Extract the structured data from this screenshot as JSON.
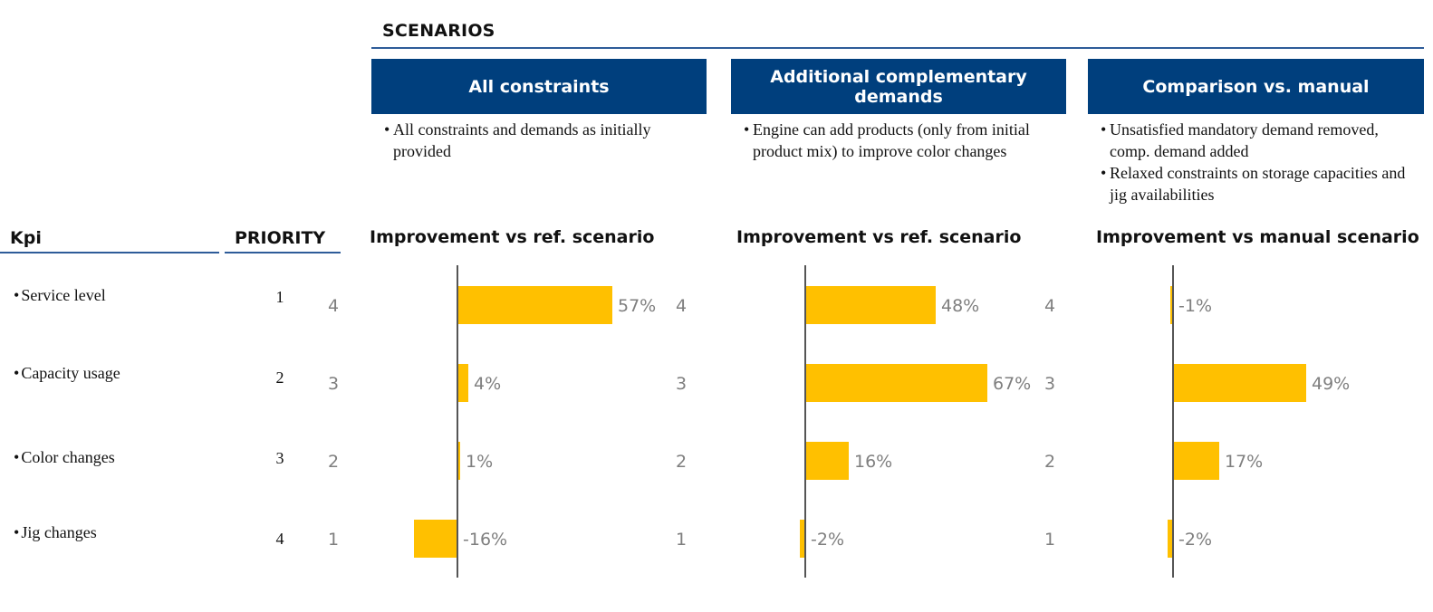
{
  "header": {
    "title": "SCENARIOS"
  },
  "scenarios": [
    {
      "title": "All constraints",
      "bullets": [
        "All constraints and demands as initially provided"
      ]
    },
    {
      "title": "Additional complementary demands",
      "bullets": [
        "Engine can add products (only from initial product mix) to improve color changes"
      ]
    },
    {
      "title": "Comparison vs. manual",
      "bullets": [
        "Unsatisfied mandatory demand removed, comp. demand added",
        "Relaxed constraints on storage capacities and jig availabilities"
      ]
    }
  ],
  "table": {
    "kpi_header": "Kpi",
    "priority_header": "PRIORITY",
    "rows": [
      {
        "kpi": "Service level",
        "priority": "1"
      },
      {
        "kpi": "Capacity usage",
        "priority": "2"
      },
      {
        "kpi": "Color changes",
        "priority": "3"
      },
      {
        "kpi": "Jig changes",
        "priority": "4"
      }
    ]
  },
  "colors": {
    "header_bg": "#003f7d",
    "rule": "#2e5c99",
    "bar": "#ffc000",
    "label": "#7f7f7f"
  },
  "chart_data": [
    {
      "type": "bar",
      "orientation": "horizontal",
      "title": "Improvement vs ref. scenario",
      "categories": [
        "4",
        "3",
        "2",
        "1"
      ],
      "values": [
        57,
        4,
        1,
        -16
      ],
      "value_labels": [
        "57%",
        "4%",
        "1%",
        "-16%"
      ],
      "unit": "%"
    },
    {
      "type": "bar",
      "orientation": "horizontal",
      "title": "Improvement vs ref. scenario",
      "categories": [
        "4",
        "3",
        "2",
        "1"
      ],
      "values": [
        48,
        67,
        16,
        -2
      ],
      "value_labels": [
        "48%",
        "67%",
        "16%",
        "-2%"
      ],
      "unit": "%"
    },
    {
      "type": "bar",
      "orientation": "horizontal",
      "title": "Improvement vs manual scenario",
      "categories": [
        "4",
        "3",
        "2",
        "1"
      ],
      "values": [
        -1,
        49,
        17,
        -2
      ],
      "value_labels": [
        "-1%",
        "49%",
        "17%",
        "-2%"
      ],
      "unit": "%"
    }
  ]
}
